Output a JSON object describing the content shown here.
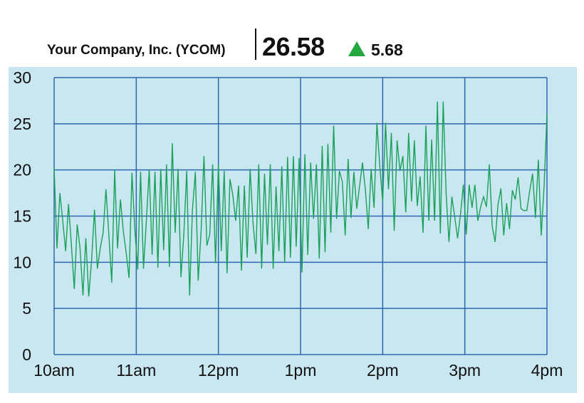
{
  "header": {
    "company": "Your Company, Inc. (YCOM)",
    "price": "26.58",
    "change": "5.68",
    "change_icon": "triangle-up-icon",
    "change_color": "#24a83f"
  },
  "chart_data": {
    "type": "line",
    "title": "",
    "xlabel": "",
    "ylabel": "",
    "ylim": [
      0,
      30
    ],
    "yticks": [
      0,
      5,
      10,
      15,
      20,
      25,
      30
    ],
    "xticks": [
      "10am",
      "11am",
      "12pm",
      "1pm",
      "2pm",
      "3pm",
      "4pm"
    ],
    "xlim_hours": [
      10,
      16
    ],
    "grid": true,
    "legend": "none",
    "line_color": "#1aa058",
    "series": [
      {
        "values": [
          20.2,
          11.5,
          17.5,
          14.5,
          11.2,
          16.3,
          11.8,
          7.1,
          14.1,
          11.5,
          6.4,
          12.6,
          6.3,
          10.2,
          15.7,
          9.3,
          11.5,
          13.2,
          17.9,
          12.9,
          7.8,
          20.0,
          11.5,
          16.8,
          13.4,
          11.0,
          8.3,
          19.7,
          13.6,
          9.2,
          19.8,
          9.3,
          14.5,
          20.0,
          10.8,
          19.8,
          9.4,
          20.1,
          11.3,
          20.6,
          9.5,
          22.9,
          13.2,
          20.1,
          8.4,
          13.0,
          19.9,
          6.4,
          15.7,
          19.8,
          8.0,
          13.4,
          21.5,
          11.8,
          13.0,
          20.6,
          9.9,
          20.6,
          11.2,
          19.9,
          8.8,
          19.0,
          17.3,
          14.5,
          18.3,
          9.1,
          18.3,
          10.5,
          20.1,
          14.3,
          10.9,
          20.6,
          9.3,
          19.6,
          11.9,
          20.6,
          9.3,
          18.2,
          11.2,
          20.4,
          10.0,
          21.4,
          10.5,
          21.5,
          11.7,
          21.3,
          8.9,
          21.7,
          10.8,
          20.8,
          14.7,
          20.6,
          10.4,
          22.6,
          11.1,
          22.8,
          13.2,
          24.8,
          14.7,
          19.9,
          18.7,
          12.9,
          21.2,
          14.8,
          19.8,
          15.8,
          18.3,
          20.8,
          17.8,
          13.6,
          20.1,
          15.9,
          25.1,
          20.4,
          16.6,
          25.1,
          17.9,
          24.0,
          13.4,
          23.2,
          19.9,
          21.5,
          15.4,
          24.0,
          16.6,
          23.2,
          16.1,
          19.3,
          13.2,
          24.8,
          14.5,
          23.3,
          14.5,
          27.4,
          13.1,
          27.4,
          17.5,
          12.2,
          17.1,
          14.9,
          12.6,
          15.2,
          18.4,
          13.0,
          18.4,
          15.9,
          18.4,
          14.5,
          16.0,
          17.1,
          16.0,
          20.6,
          13.9,
          12.2,
          16.2,
          18.0,
          12.9,
          16.4,
          13.6,
          17.8,
          16.8,
          19.2,
          15.8,
          15.6,
          15.6,
          17.7,
          19.6,
          14.8,
          21.1,
          12.9,
          18.3,
          26.1
        ],
        "x_start_hour": 10,
        "x_end_hour": 16
      }
    ]
  }
}
